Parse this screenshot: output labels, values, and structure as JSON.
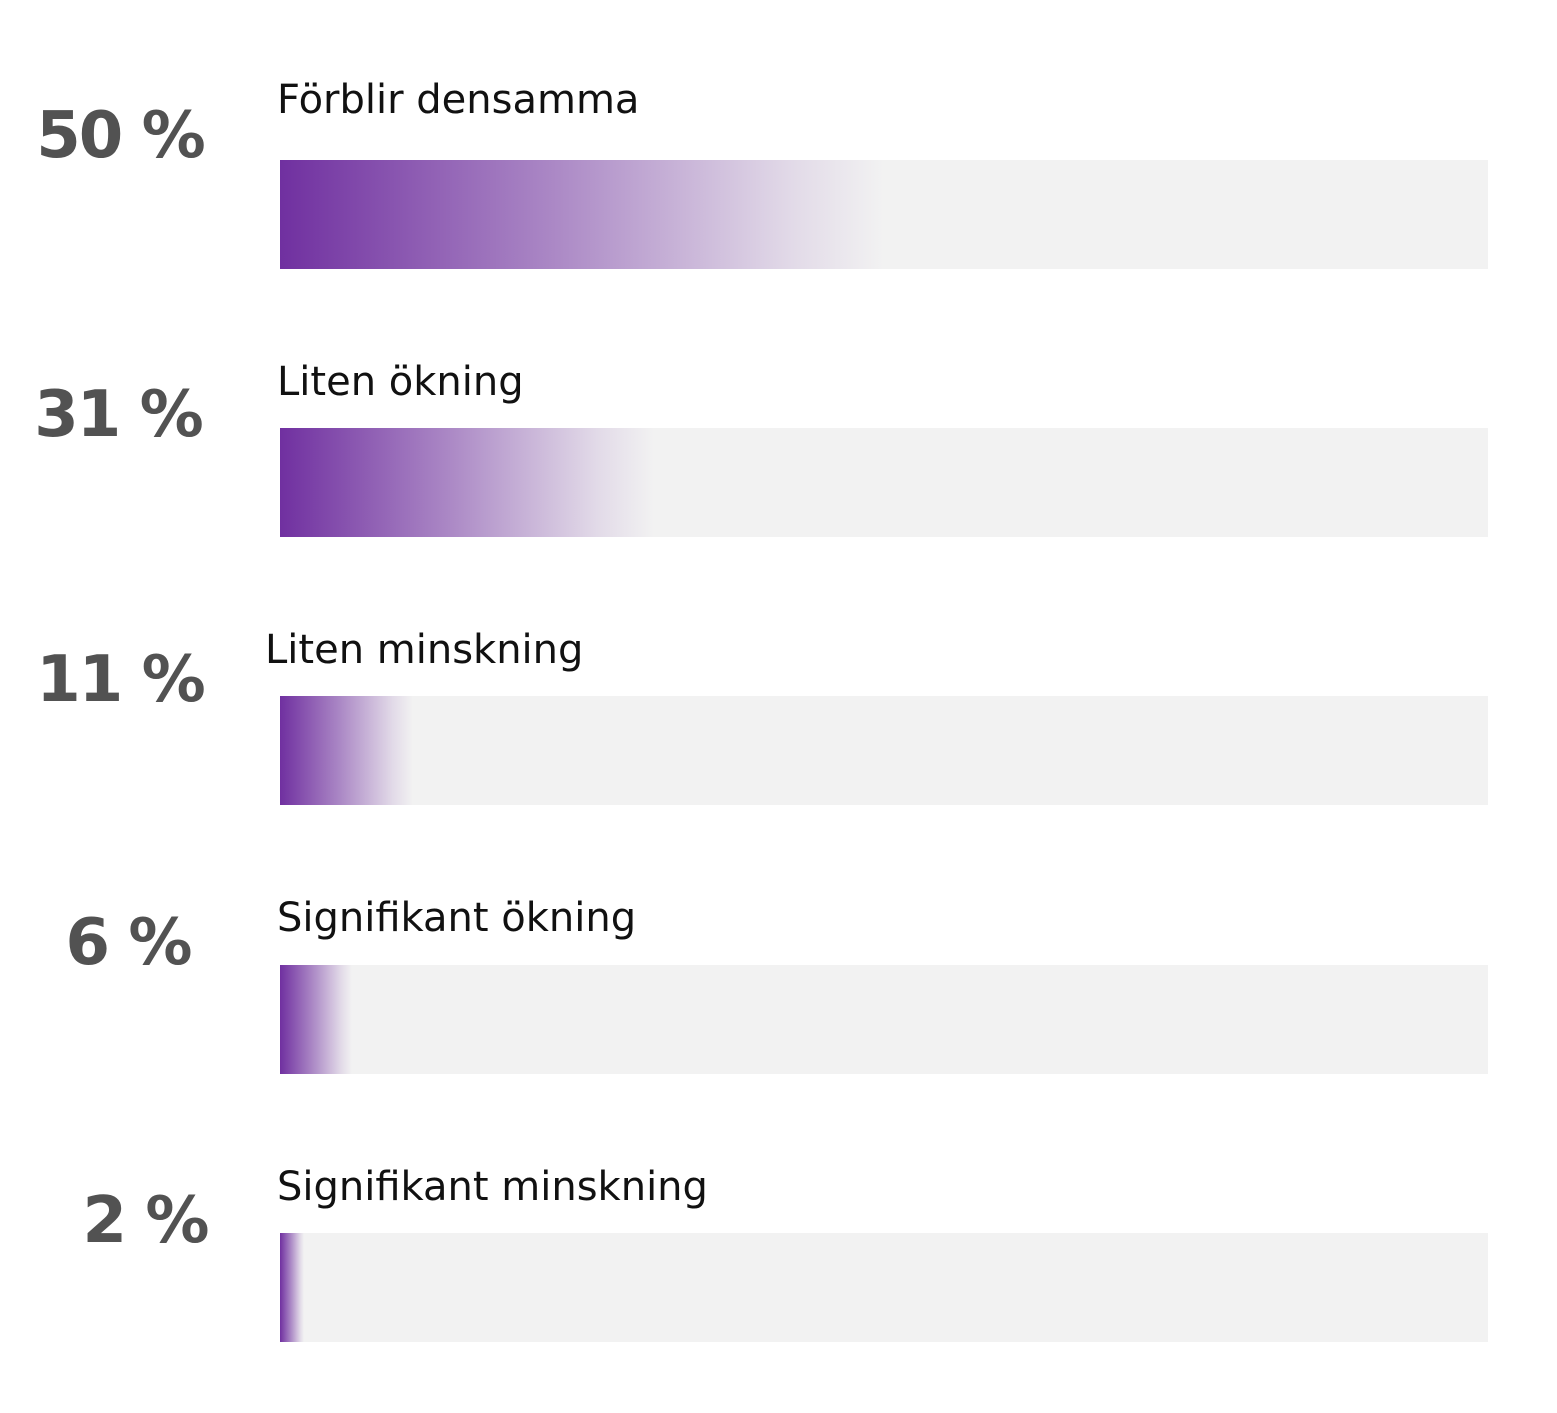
{
  "chart_data": {
    "type": "bar",
    "orientation": "horizontal",
    "unit": "%",
    "xlim": [
      0,
      100
    ],
    "grid": false,
    "legend": "none",
    "colors": {
      "fill_start": "#7030a0",
      "track": "#f2f2f2",
      "percent_text": "#525252",
      "label_text": "#111111"
    },
    "bars": [
      {
        "label": "Förblir densamma",
        "value": 50,
        "display": "50 %"
      },
      {
        "label": "Liten ökning",
        "value": 31,
        "display": "31 %"
      },
      {
        "label": "Liten minskning",
        "value": 11,
        "display": "11 %"
      },
      {
        "label": "Signifikant ökning",
        "value": 6,
        "display": "6 %"
      },
      {
        "label": "Signifikant minskning",
        "value": 2,
        "display": "2 %"
      }
    ]
  }
}
